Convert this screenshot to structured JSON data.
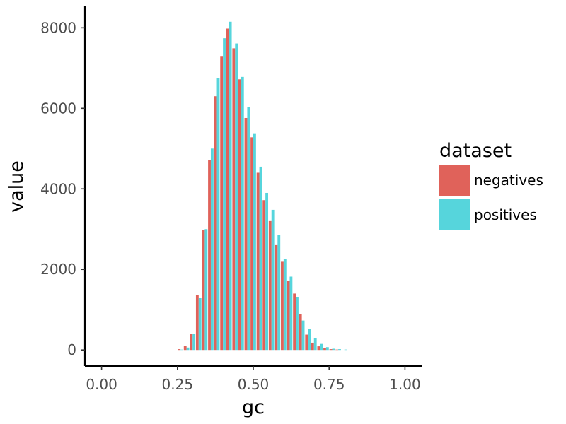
{
  "chart_data": {
    "type": "bar",
    "title": "",
    "xlabel": "gc",
    "ylabel": "value",
    "xlim": [
      -0.055,
      1.055
    ],
    "ylim": [
      -400,
      8550
    ],
    "x_ticks": [
      0.0,
      0.25,
      0.5,
      0.75,
      1.0
    ],
    "x_tick_labels": [
      "0.00",
      "0.25",
      "0.50",
      "0.75",
      "1.00"
    ],
    "y_ticks": [
      0,
      2000,
      4000,
      6000,
      8000
    ],
    "y_tick_labels": [
      "0",
      "2000",
      "4000",
      "6000",
      "8000"
    ],
    "bin_width": 0.02,
    "grid": false,
    "legend_position": "right",
    "legend_title": "dataset",
    "x": [
      0.26,
      0.28,
      0.3,
      0.32,
      0.34,
      0.36,
      0.38,
      0.4,
      0.42,
      0.44,
      0.46,
      0.48,
      0.5,
      0.52,
      0.54,
      0.56,
      0.58,
      0.6,
      0.62,
      0.64,
      0.66,
      0.68,
      0.7,
      0.72,
      0.74,
      0.76,
      0.78,
      0.8
    ],
    "series": [
      {
        "name": "negatives",
        "color": "#e0625a",
        "values": [
          20,
          100,
          390,
          1360,
          2980,
          4720,
          6300,
          7300,
          7980,
          7490,
          6720,
          5760,
          5280,
          4400,
          3720,
          3200,
          2620,
          2190,
          1720,
          1400,
          890,
          380,
          180,
          90,
          40,
          20,
          10,
          0
        ]
      },
      {
        "name": "positives",
        "color": "#56d5dc",
        "values": [
          10,
          60,
          390,
          1300,
          3000,
          5000,
          6750,
          7740,
          8150,
          7610,
          6780,
          6030,
          5380,
          4550,
          3900,
          3480,
          2850,
          2260,
          1820,
          1320,
          730,
          530,
          290,
          150,
          70,
          30,
          20,
          10
        ]
      }
    ]
  }
}
